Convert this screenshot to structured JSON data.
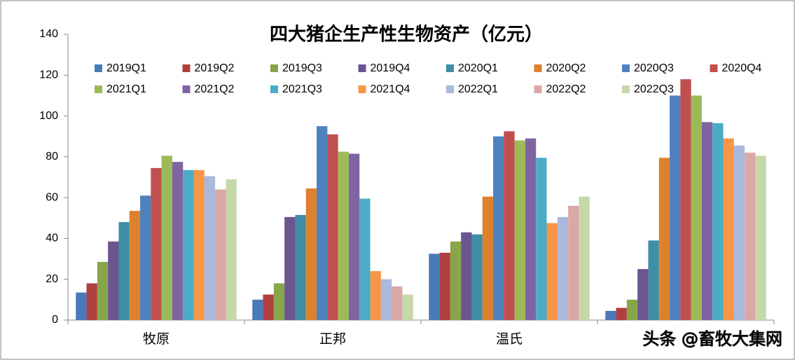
{
  "chart_data": {
    "type": "bar",
    "title": "四大猪企生产性生物资产（亿元）",
    "categories": [
      "牧原",
      "正邦",
      "温氏",
      null
    ],
    "series": [
      {
        "name": "2019Q1",
        "color": "#4a7ab7",
        "values": [
          13.5,
          10,
          32.5,
          4.5
        ]
      },
      {
        "name": "2019Q2",
        "color": "#b0403f",
        "values": [
          18,
          12.5,
          33,
          6
        ]
      },
      {
        "name": "2019Q3",
        "color": "#87a64a",
        "values": [
          28.5,
          18,
          38.5,
          10
        ]
      },
      {
        "name": "2019Q4",
        "color": "#6c5590",
        "values": [
          38.5,
          50.5,
          43,
          25
        ]
      },
      {
        "name": "2020Q1",
        "color": "#3d8ea6",
        "values": [
          48,
          51.5,
          42,
          39
        ]
      },
      {
        "name": "2020Q2",
        "color": "#de812f",
        "values": [
          53.5,
          64.5,
          60.5,
          79.5
        ]
      },
      {
        "name": "2020Q3",
        "color": "#4f81bd",
        "values": [
          61,
          95,
          90,
          110
        ]
      },
      {
        "name": "2020Q4",
        "color": "#c0504d",
        "values": [
          74.5,
          91,
          92.5,
          118
        ]
      },
      {
        "name": "2021Q1",
        "color": "#9bbb59",
        "values": [
          80.5,
          82.5,
          88,
          110
        ]
      },
      {
        "name": "2021Q2",
        "color": "#8064a2",
        "values": [
          77.5,
          81.5,
          89,
          97
        ]
      },
      {
        "name": "2021Q3",
        "color": "#4bacc6",
        "values": [
          73.5,
          59.5,
          79.5,
          96.5
        ]
      },
      {
        "name": "2021Q4",
        "color": "#f79646",
        "values": [
          73.5,
          24,
          47.5,
          89
        ]
      },
      {
        "name": "2022Q1",
        "color": "#a9b9dc",
        "values": [
          70.5,
          20,
          50.5,
          85.5
        ]
      },
      {
        "name": "2022Q2",
        "color": "#dba8a7",
        "values": [
          64,
          16.5,
          56,
          82
        ]
      },
      {
        "name": "2022Q3",
        "color": "#c6d8a8",
        "values": [
          69,
          12.5,
          60.5,
          80.5
        ]
      }
    ],
    "ylim": [
      0,
      140
    ],
    "yticks": [
      0,
      20,
      40,
      60,
      80,
      100,
      120,
      140
    ],
    "grid": false,
    "watermark": "头条 @畜牧大集网"
  }
}
